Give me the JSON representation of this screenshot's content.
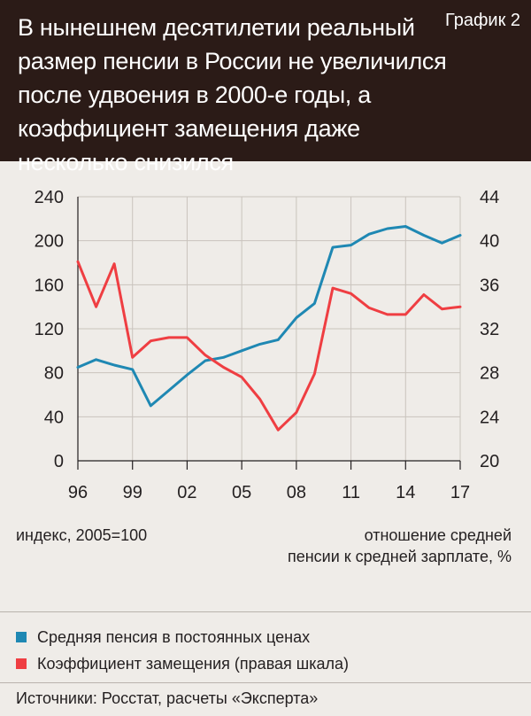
{
  "header": {
    "title": "В нынешнем десятилетии реальный размер пенсии в России не увеличился после удвоения в 2000-е годы, а коэффициент замещения даже несколько снизился",
    "tag": "График 2"
  },
  "notes": {
    "left_axis": "индекс, 2005=100",
    "right_axis_line1": "отношение средней",
    "right_axis_line2": "пенсии к средней зарплате, %"
  },
  "legend": [
    {
      "label": "Средняя пенсия в постоянных ценах",
      "color": "#1f88b3"
    },
    {
      "label": "Коэффициент замещения (правая шкала)",
      "color": "#ef3e42"
    }
  ],
  "source": "Источники: Росстат, расчеты «Эксперта»",
  "chart_data": {
    "type": "line",
    "x_ticks": [
      "96",
      "99",
      "02",
      "05",
      "08",
      "11",
      "14",
      "17"
    ],
    "left_axis": {
      "ticks": [
        0,
        40,
        80,
        120,
        160,
        200,
        240
      ],
      "ylim": [
        0,
        240
      ]
    },
    "right_axis": {
      "ticks": [
        20,
        24,
        28,
        32,
        36,
        40,
        44
      ],
      "ylim": [
        20,
        44
      ]
    },
    "series": [
      {
        "name": "Средняя пенсия в постоянных ценах",
        "axis": "left",
        "color": "#1f88b3",
        "x": [
          1996,
          1997,
          1998,
          1999,
          2000,
          2001,
          2002,
          2003,
          2004,
          2005,
          2006,
          2007,
          2008,
          2009,
          2010,
          2011,
          2012,
          2013,
          2014,
          2015,
          2016,
          2017
        ],
        "y": [
          85,
          92,
          87,
          83,
          50,
          64,
          78,
          91,
          94,
          100,
          106,
          110,
          130,
          143,
          194,
          196,
          206,
          211,
          213,
          205,
          198,
          205
        ]
      },
      {
        "name": "Коэффициент замещения (правая шкала)",
        "axis": "right",
        "color": "#ef3e42",
        "x": [
          1996,
          1997,
          1998,
          1999,
          2000,
          2001,
          2002,
          2003,
          2004,
          2005,
          2006,
          2007,
          2008,
          2009,
          2010,
          2011,
          2012,
          2013,
          2014,
          2015,
          2016,
          2017
        ],
        "y": [
          38.1,
          34.0,
          37.9,
          29.4,
          30.9,
          31.2,
          31.2,
          29.6,
          28.5,
          27.6,
          25.6,
          22.8,
          24.4,
          27.9,
          35.7,
          35.2,
          33.9,
          33.3,
          33.3,
          35.1,
          33.8,
          34.0
        ]
      }
    ]
  }
}
